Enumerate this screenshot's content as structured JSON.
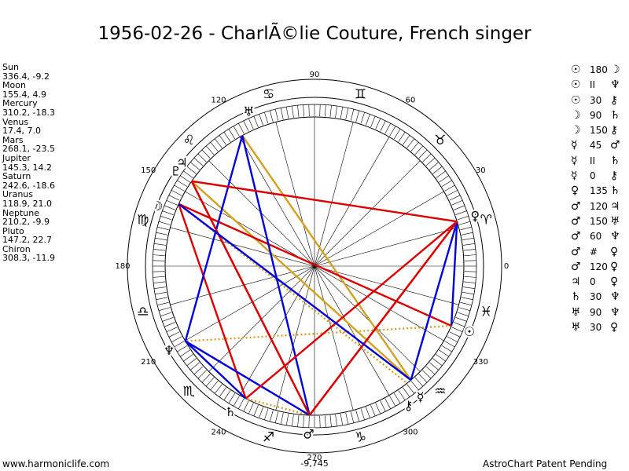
{
  "title": "1956-02-26 - CharlÃ©lie Couture, French singer",
  "planets": [
    {
      "name": "Sun",
      "coords": "336.4, -9.2",
      "longitude": 336.4,
      "glyph": "☉",
      "label_lon": 337.0
    },
    {
      "name": "Moon",
      "coords": "155.4, 4.9",
      "longitude": 155.4,
      "glyph": "☽",
      "label_lon": 159.0
    },
    {
      "name": "Mercury",
      "coords": "310.2, -18.3",
      "longitude": 310.2,
      "glyph": "☿",
      "label_lon": 309.0
    },
    {
      "name": "Venus",
      "coords": "17.4, 7.0",
      "longitude": 17.4,
      "glyph": "♀",
      "label_lon": 17.4
    },
    {
      "name": "Mars",
      "coords": "268.1, -23.5",
      "longitude": 268.1,
      "glyph": "♂",
      "label_lon": 268.0
    },
    {
      "name": "Jupiter",
      "coords": "145.3, 14.2",
      "longitude": 145.3,
      "glyph": "♃",
      "label_lon": 142.0
    },
    {
      "name": "Saturn",
      "coords": "242.6, -18.6",
      "longitude": 242.6,
      "glyph": "♄",
      "label_lon": 240.0
    },
    {
      "name": "Uranus",
      "coords": "118.9, 21.0",
      "longitude": 118.9,
      "glyph": "♅",
      "label_lon": 113.0
    },
    {
      "name": "Neptune",
      "coords": "210.2, -9.9",
      "longitude": 210.2,
      "glyph": "♆",
      "label_lon": 210.2
    },
    {
      "name": "Pluto",
      "coords": "147.2, 22.7",
      "longitude": 147.2,
      "glyph": "♇",
      "label_lon": 145.5
    },
    {
      "name": "Chiron",
      "coords": "308.3, -11.9",
      "longitude": 308.3,
      "glyph": "⚷",
      "label_lon": 304.0
    }
  ],
  "aspects": [
    {
      "p1": "☉",
      "aspect": "180",
      "p2": "☽"
    },
    {
      "p1": "☉",
      "aspect": "II",
      "p2": "♆"
    },
    {
      "p1": "☉",
      "aspect": "30",
      "p2": "⚷"
    },
    {
      "p1": "☽",
      "aspect": "90",
      "p2": "♄"
    },
    {
      "p1": "☽",
      "aspect": "150",
      "p2": "⚷"
    },
    {
      "p1": "☿",
      "aspect": "45",
      "p2": "♂"
    },
    {
      "p1": "☿",
      "aspect": "II",
      "p2": "♄"
    },
    {
      "p1": "☿",
      "aspect": "0",
      "p2": "⚷"
    },
    {
      "p1": "♀",
      "aspect": "135",
      "p2": "♄"
    },
    {
      "p1": "♂",
      "aspect": "120",
      "p2": "♃"
    },
    {
      "p1": "♂",
      "aspect": "150",
      "p2": "♅"
    },
    {
      "p1": "♂",
      "aspect": "60",
      "p2": "♆"
    },
    {
      "p1": "♂",
      "aspect": "#",
      "p2": "♀"
    },
    {
      "p1": "♂",
      "aspect": "120",
      "p2": "♀"
    },
    {
      "p1": "♃",
      "aspect": "0",
      "p2": "♀"
    },
    {
      "p1": "♄",
      "aspect": "30",
      "p2": "♆"
    },
    {
      "p1": "♅",
      "aspect": "90",
      "p2": "♆"
    },
    {
      "p1": "♅",
      "aspect": "30",
      "p2": "♀"
    }
  ],
  "wheel": {
    "degree_labels": [
      "0",
      "30",
      "60",
      "90",
      "120",
      "150",
      "180",
      "210",
      "240",
      "270",
      "300",
      "330"
    ],
    "bottom_readout": "-9,745",
    "signs": [
      "♈",
      "♉",
      "♊",
      "♋",
      "♌",
      "♍",
      "♎",
      "♏",
      "♐",
      "♑",
      "♒",
      "♓"
    ],
    "chart_lines": [
      {
        "from": "☉",
        "to": "♆",
        "color": "#d4a020",
        "style": "dotted"
      },
      {
        "from": "☽",
        "to": "⚷",
        "color": "#d4a020",
        "style": "dotted"
      },
      {
        "from": "♅",
        "to": "☿",
        "color": "#d4a020",
        "style": "solid"
      },
      {
        "from": "♃",
        "to": "☿",
        "color": "#d4a020",
        "style": "solid"
      },
      {
        "from": "♂",
        "to": "♄",
        "color": "#d4a020",
        "style": "dotted"
      },
      {
        "from": "☉",
        "to": "♀",
        "color": "#0000dd",
        "style": "solid"
      },
      {
        "from": "☉",
        "to": "☽",
        "color": "#dd0000",
        "style": "solid"
      },
      {
        "from": "☽",
        "to": "♄",
        "color": "#dd0000",
        "style": "solid"
      },
      {
        "from": "♂",
        "to": "♃",
        "color": "#dd0000",
        "style": "solid"
      },
      {
        "from": "♂",
        "to": "♀",
        "color": "#dd0000",
        "style": "solid"
      },
      {
        "from": "♂",
        "to": "♅",
        "color": "#0000dd",
        "style": "solid"
      },
      {
        "from": "♅",
        "to": "♆",
        "color": "#0000dd",
        "style": "solid"
      },
      {
        "from": "♆",
        "to": "♄",
        "color": "#0000dd",
        "style": "solid"
      },
      {
        "from": "♆",
        "to": "♂",
        "color": "#0000dd",
        "style": "solid"
      },
      {
        "from": "♄",
        "to": "♀",
        "color": "#dd0000",
        "style": "solid"
      },
      {
        "from": "♃",
        "to": "♂",
        "color": "#dd0000",
        "style": "solid"
      },
      {
        "from": "♀",
        "to": "☿",
        "color": "#0000dd",
        "style": "solid"
      },
      {
        "from": "♀",
        "to": "♂",
        "color": "#dd0000",
        "style": "solid"
      },
      {
        "from": "☽",
        "to": "☿",
        "color": "#0000dd",
        "style": "solid"
      },
      {
        "from": "♀",
        "to": "♃",
        "color": "#dd0000",
        "style": "solid"
      }
    ]
  },
  "footer": {
    "left": "www.harmoniclife.com",
    "right": "AstroChart Patent Pending"
  }
}
